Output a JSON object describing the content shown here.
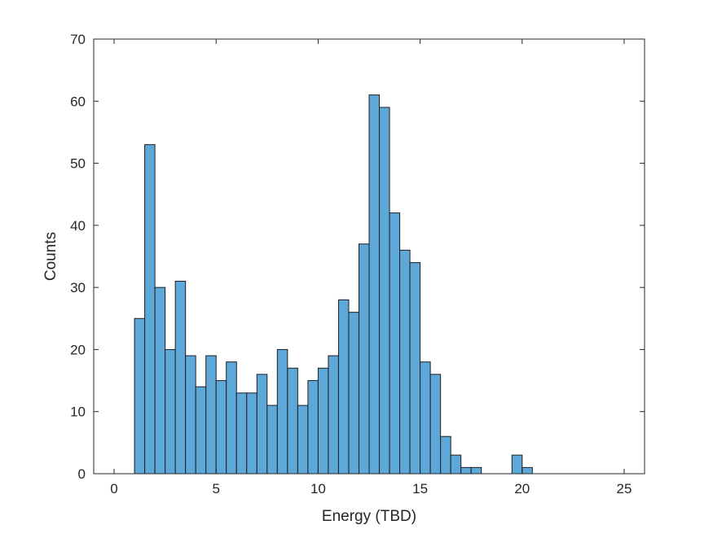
{
  "chart_data": {
    "type": "bar",
    "title": "",
    "xlabel": "Energy (TBD)",
    "ylabel": "Counts",
    "xlim": [
      -1,
      26
    ],
    "ylim": [
      0,
      70
    ],
    "xticks": [
      0,
      5,
      10,
      15,
      20,
      25
    ],
    "yticks": [
      0,
      10,
      20,
      30,
      40,
      50,
      60,
      70
    ],
    "grid": false,
    "bin_width": 0.5,
    "bin_edges_start": 0,
    "values": [
      0,
      0,
      25,
      53,
      30,
      20,
      31,
      19,
      14,
      19,
      15,
      18,
      13,
      13,
      16,
      11,
      20,
      17,
      11,
      15,
      17,
      19,
      28,
      26,
      37,
      61,
      59,
      42,
      36,
      34,
      18,
      16,
      6,
      3,
      1,
      1,
      0,
      0,
      0,
      3,
      1,
      0,
      0,
      0,
      0,
      0,
      0,
      0,
      0,
      0
    ],
    "bar_color": "#5DA7D9",
    "edge_color": "#1f1f1f"
  }
}
